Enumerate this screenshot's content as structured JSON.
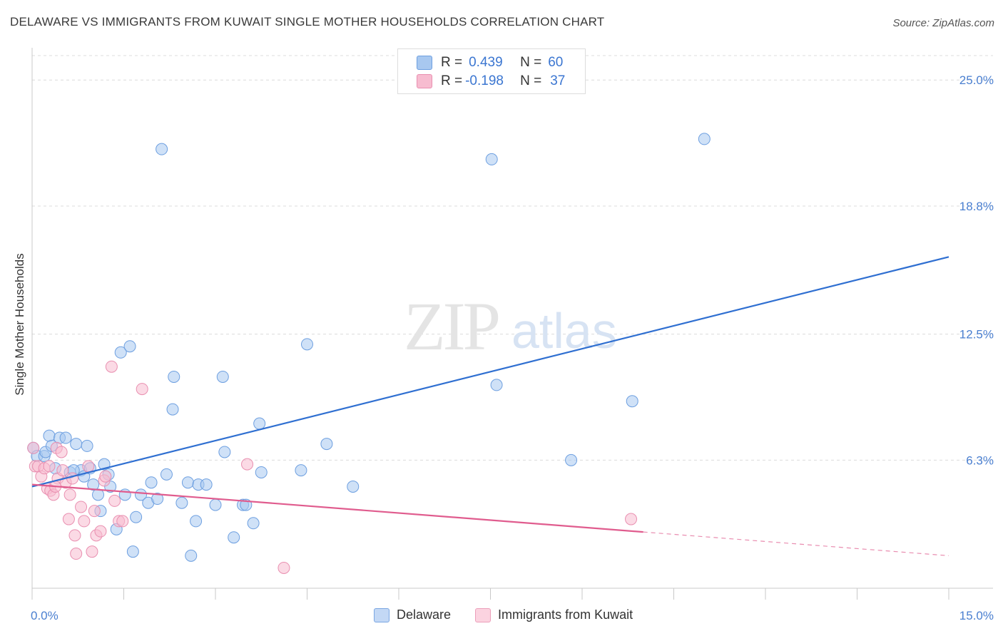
{
  "title": "DELAWARE VS IMMIGRANTS FROM KUWAIT SINGLE MOTHER HOUSEHOLDS CORRELATION CHART",
  "source": "Source: ZipAtlas.com",
  "watermark": {
    "zip": "ZIP",
    "atlas": "atlas"
  },
  "legend": {
    "rows": [
      {
        "r_label": "R =",
        "r_value": "0.439",
        "n_label": "N =",
        "n_value": "60",
        "color": "#a8c8f0",
        "border": "#6d9fe0"
      },
      {
        "r_label": "R =",
        "r_value": "-0.198",
        "n_label": "N =",
        "n_value": "37",
        "color": "#f7bcd0",
        "border": "#e98fb0"
      }
    ]
  },
  "chart_data": {
    "type": "scatter",
    "title": "DELAWARE VS IMMIGRANTS FROM KUWAIT SINGLE MOTHER HOUSEHOLDS CORRELATION CHART",
    "xlabel": "",
    "ylabel": "Single Mother Households",
    "xlim": [
      0,
      15
    ],
    "ylim": [
      0,
      26.2
    ],
    "x_tick_labels": [
      "0.0%",
      "15.0%"
    ],
    "y_ticks": [
      6.3,
      12.5,
      18.8,
      25.0
    ],
    "y_tick_labels": [
      "6.3%",
      "12.5%",
      "18.8%",
      "25.0%"
    ],
    "grid": true,
    "series": [
      {
        "name": "Delaware",
        "color": "#a8c8f0",
        "edge": "#6d9fe0",
        "trend_color": "#2f6fd1",
        "trend": {
          "x0": 0,
          "y0": 5.0,
          "x1": 15.0,
          "y1": 16.3,
          "dash_from": null
        },
        "points": [
          [
            0.02,
            6.9
          ],
          [
            0.08,
            6.5
          ],
          [
            0.2,
            6.5
          ],
          [
            0.22,
            6.7
          ],
          [
            0.28,
            7.5
          ],
          [
            0.32,
            7.0
          ],
          [
            0.38,
            5.9
          ],
          [
            0.45,
            7.4
          ],
          [
            0.55,
            7.4
          ],
          [
            0.62,
            5.7
          ],
          [
            0.72,
            7.1
          ],
          [
            0.8,
            5.8
          ],
          [
            0.85,
            5.5
          ],
          [
            0.9,
            7.0
          ],
          [
            0.95,
            5.9
          ],
          [
            1.0,
            5.1
          ],
          [
            1.08,
            4.6
          ],
          [
            1.12,
            3.8
          ],
          [
            1.18,
            6.1
          ],
          [
            1.25,
            5.6
          ],
          [
            1.38,
            2.9
          ],
          [
            1.45,
            11.6
          ],
          [
            1.52,
            4.6
          ],
          [
            1.6,
            11.9
          ],
          [
            1.65,
            1.8
          ],
          [
            1.7,
            3.5
          ],
          [
            1.78,
            4.6
          ],
          [
            1.9,
            4.2
          ],
          [
            1.95,
            5.2
          ],
          [
            2.05,
            4.4
          ],
          [
            2.12,
            21.6
          ],
          [
            2.2,
            5.6
          ],
          [
            2.3,
            8.8
          ],
          [
            2.32,
            10.4
          ],
          [
            2.45,
            4.2
          ],
          [
            2.55,
            5.2
          ],
          [
            2.6,
            1.6
          ],
          [
            2.68,
            3.3
          ],
          [
            2.72,
            5.1
          ],
          [
            2.85,
            5.1
          ],
          [
            3.0,
            4.1
          ],
          [
            3.12,
            10.4
          ],
          [
            3.15,
            6.7
          ],
          [
            3.3,
            2.5
          ],
          [
            3.45,
            4.1
          ],
          [
            3.62,
            3.2
          ],
          [
            3.72,
            8.1
          ],
          [
            3.75,
            5.7
          ],
          [
            4.4,
            5.8
          ],
          [
            4.5,
            12.0
          ],
          [
            4.82,
            7.1
          ],
          [
            5.25,
            5.0
          ],
          [
            7.52,
            21.1
          ],
          [
            7.6,
            10.0
          ],
          [
            8.82,
            6.3
          ],
          [
            9.82,
            9.2
          ],
          [
            11.0,
            22.1
          ],
          [
            1.28,
            5.0
          ],
          [
            0.68,
            5.8
          ],
          [
            3.5,
            4.1
          ]
        ]
      },
      {
        "name": "Immigrants from Kuwait",
        "color": "#f7bcd0",
        "edge": "#e98fb0",
        "trend_color": "#e05c8e",
        "trend": {
          "x0": 0,
          "y0": 5.1,
          "x1": 15.0,
          "y1": 1.6,
          "dash_from": 10.0
        },
        "points": [
          [
            0.02,
            6.9
          ],
          [
            0.05,
            6.0
          ],
          [
            0.1,
            6.0
          ],
          [
            0.15,
            5.5
          ],
          [
            0.2,
            5.9
          ],
          [
            0.25,
            4.9
          ],
          [
            0.3,
            4.8
          ],
          [
            0.35,
            4.6
          ],
          [
            0.4,
            6.9
          ],
          [
            0.42,
            5.4
          ],
          [
            0.48,
            6.7
          ],
          [
            0.5,
            5.8
          ],
          [
            0.55,
            5.2
          ],
          [
            0.6,
            3.4
          ],
          [
            0.62,
            4.6
          ],
          [
            0.7,
            2.6
          ],
          [
            0.72,
            1.7
          ],
          [
            0.8,
            4.0
          ],
          [
            0.85,
            3.3
          ],
          [
            0.92,
            6.0
          ],
          [
            0.98,
            1.8
          ],
          [
            1.02,
            3.8
          ],
          [
            1.05,
            2.6
          ],
          [
            1.12,
            2.8
          ],
          [
            1.18,
            5.3
          ],
          [
            1.2,
            5.5
          ],
          [
            1.3,
            10.9
          ],
          [
            1.35,
            4.3
          ],
          [
            1.42,
            3.3
          ],
          [
            1.48,
            3.3
          ],
          [
            1.8,
            9.8
          ],
          [
            3.52,
            6.1
          ],
          [
            4.12,
            1.0
          ],
          [
            9.8,
            3.4
          ],
          [
            0.38,
            5.0
          ],
          [
            0.28,
            6.0
          ],
          [
            0.66,
            5.4
          ]
        ]
      }
    ]
  },
  "bottom_legend": [
    {
      "label": "Delaware",
      "color": "#c3d8f5",
      "border": "#7aa6e2"
    },
    {
      "label": "Immigrants from Kuwait",
      "color": "#fbd3e0",
      "border": "#ec9fba"
    }
  ]
}
